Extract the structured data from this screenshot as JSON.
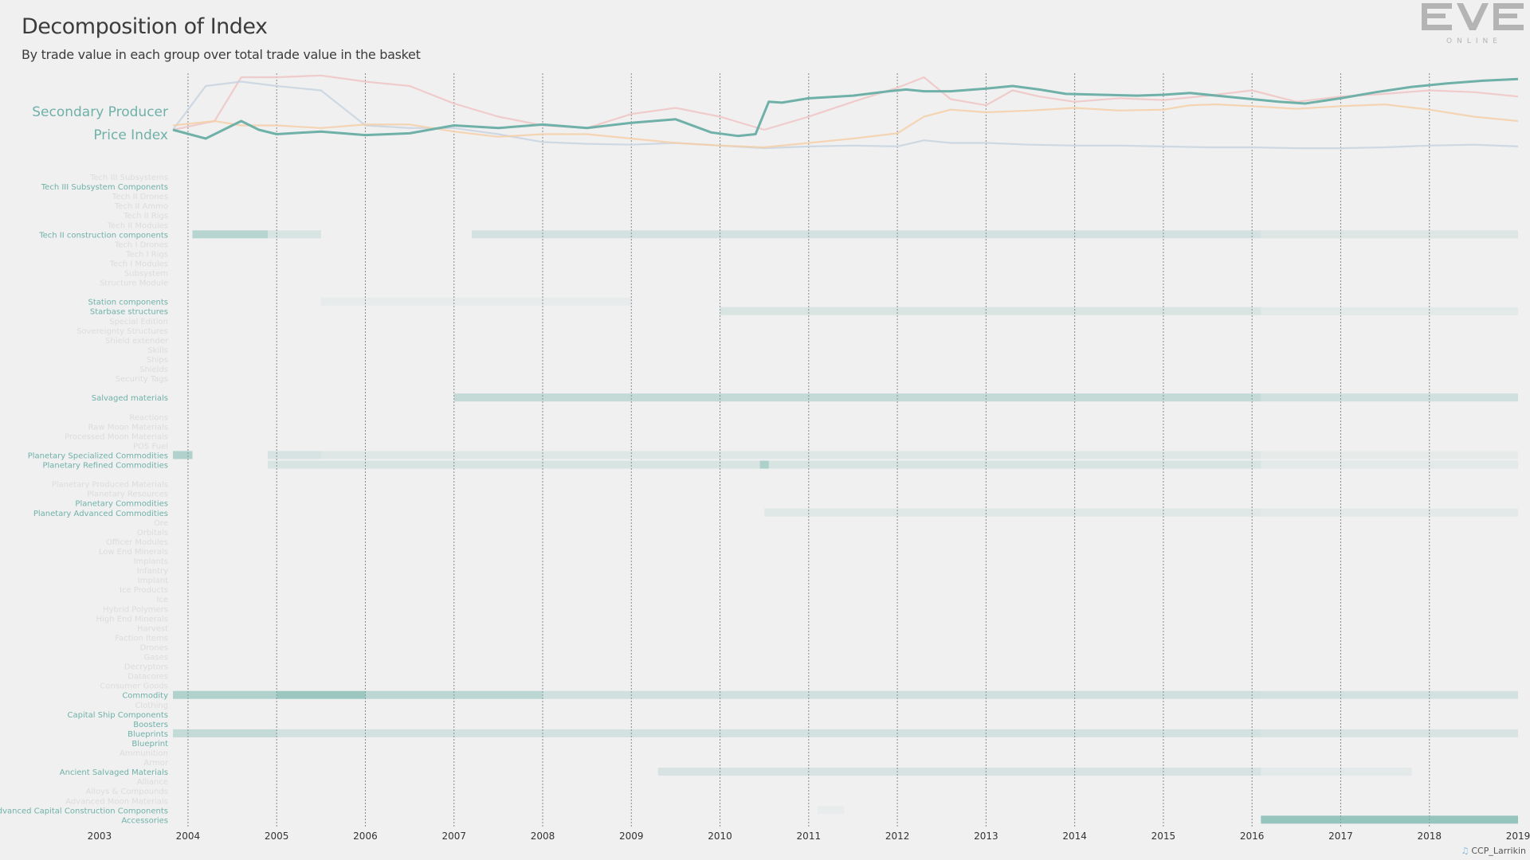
{
  "header": {
    "title": "Decomposition of Index",
    "subtitle": "By trade value in each group over total trade value in the basket"
  },
  "logo": {
    "word": "EVE",
    "sub": "ONLINE"
  },
  "credit": {
    "text": "CCP_Larrikin",
    "icon": "twitter-bird-icon"
  },
  "colors": {
    "background": "#f0f0f0",
    "accent": "#6fb1a8",
    "pink": "#f0c4c4",
    "blue": "#c8d4e0",
    "orange": "#f5cfa8",
    "grid": "#888888"
  },
  "chart_data": [
    {
      "type": "line",
      "label_lines": [
        "Secondary Producer",
        "Price Index"
      ],
      "x_range": [
        2003.83,
        2019.0
      ],
      "series": [
        {
          "color": "#6fb1a8",
          "highlight": true,
          "x": [
            2003.83,
            2004.2,
            2004.4,
            2004.6,
            2004.8,
            2005.0,
            2005.5,
            2006.0,
            2006.5,
            2007.0,
            2007.5,
            2008.0,
            2008.5,
            2009.0,
            2009.5,
            2009.9,
            2010.2,
            2010.4,
            2010.55,
            2010.7,
            2011.0,
            2011.5,
            2011.9,
            2012.1,
            2012.3,
            2012.6,
            2013.0,
            2013.3,
            2013.6,
            2013.9,
            2014.3,
            2014.7,
            2015.0,
            2015.3,
            2015.6,
            2016.0,
            2016.3,
            2016.6,
            2017.0,
            2017.4,
            2017.8,
            2018.2,
            2018.6,
            2019.0
          ],
          "y": [
            97,
            96,
            97,
            98,
            97,
            96.5,
            96.8,
            96.4,
            96.6,
            97.5,
            97.2,
            97.6,
            97.2,
            97.8,
            98.2,
            96.7,
            96.3,
            96.5,
            100.2,
            100.1,
            100.6,
            100.9,
            101.4,
            101.6,
            101.4,
            101.4,
            101.7,
            102.0,
            101.6,
            101.1,
            101.0,
            100.9,
            101.0,
            101.2,
            100.9,
            100.5,
            100.2,
            100.0,
            100.6,
            101.3,
            101.9,
            102.3,
            102.6,
            102.8
          ]
        },
        {
          "color": "#f0c4c4",
          "highlight": false,
          "x": [
            2003.83,
            2004.3,
            2004.6,
            2005.0,
            2005.5,
            2006.0,
            2006.5,
            2007.0,
            2007.5,
            2008.0,
            2008.5,
            2009.0,
            2009.5,
            2010.0,
            2010.5,
            2011.0,
            2011.5,
            2012.0,
            2012.3,
            2012.6,
            2013.0,
            2013.3,
            2013.6,
            2014.0,
            2014.5,
            2015.0,
            2015.5,
            2016.0,
            2016.5,
            2017.0,
            2017.5,
            2018.0,
            2018.5,
            2019.0
          ],
          "y": [
            97,
            98,
            103,
            103,
            103.2,
            102.5,
            102,
            100,
            98.5,
            97.5,
            97.2,
            98.8,
            99.5,
            98.5,
            97,
            98.5,
            100.2,
            101.8,
            103,
            100.5,
            99.8,
            101.5,
            100.8,
            100.2,
            100.6,
            100.4,
            100.9,
            101.5,
            100.2,
            100.8,
            101.1,
            101.5,
            101.3,
            100.8
          ]
        },
        {
          "color": "#c8d4e0",
          "highlight": false,
          "x": [
            2003.83,
            2004.2,
            2004.6,
            2005.0,
            2005.5,
            2006.0,
            2006.5,
            2007.0,
            2007.5,
            2008.0,
            2008.5,
            2009.0,
            2009.5,
            2010.0,
            2010.5,
            2011.0,
            2011.5,
            2012.0,
            2012.3,
            2012.6,
            2013.0,
            2013.5,
            2014.0,
            2014.5,
            2015.0,
            2015.5,
            2016.0,
            2016.5,
            2017.0,
            2017.5,
            2018.0,
            2018.5,
            2019.0
          ],
          "y": [
            97,
            102,
            102.5,
            102,
            101.5,
            97.5,
            97.2,
            97.2,
            96.5,
            95.6,
            95.4,
            95.3,
            95.5,
            95.2,
            94.9,
            95.1,
            95.2,
            95.1,
            95.8,
            95.5,
            95.5,
            95.3,
            95.2,
            95.2,
            95.1,
            95.0,
            95.0,
            94.9,
            94.9,
            95.0,
            95.2,
            95.3,
            95.1
          ]
        },
        {
          "color": "#f5cfa8",
          "highlight": false,
          "x": [
            2003.83,
            2004.3,
            2004.6,
            2005.0,
            2005.5,
            2006.0,
            2006.5,
            2007.0,
            2007.5,
            2008.0,
            2008.5,
            2009.0,
            2009.5,
            2010.0,
            2010.5,
            2011.0,
            2011.5,
            2012.0,
            2012.3,
            2012.6,
            2013.0,
            2013.5,
            2014.0,
            2014.5,
            2015.0,
            2015.3,
            2015.6,
            2016.0,
            2016.5,
            2017.0,
            2017.5,
            2018.0,
            2018.5,
            2019.0
          ],
          "y": [
            97.5,
            98,
            97.5,
            97.5,
            97.2,
            97.6,
            97.6,
            96.8,
            96.2,
            96.5,
            96.5,
            96,
            95.5,
            95.2,
            95,
            95.5,
            96,
            96.6,
            98.5,
            99.3,
            99,
            99.2,
            99.5,
            99.2,
            99.3,
            99.8,
            99.9,
            99.7,
            99.4,
            99.7,
            99.9,
            99.3,
            98.5,
            98
          ]
        }
      ]
    },
    {
      "type": "heatmap",
      "x_range": [
        2003.83,
        2019.0
      ],
      "xticks": [
        "2003",
        "2004",
        "2005",
        "2006",
        "2007",
        "2008",
        "2009",
        "2010",
        "2011",
        "2012",
        "2013",
        "2014",
        "2015",
        "2016",
        "2017",
        "2018",
        "2019"
      ],
      "rows": [
        {
          "label": "Tech III Subsystems",
          "highlight": false,
          "segments": []
        },
        {
          "label": "Tech III Subsystem Components",
          "highlight": true,
          "segments": []
        },
        {
          "label": "Tech II Drones",
          "highlight": false,
          "segments": []
        },
        {
          "label": "Tech II Ammo",
          "highlight": false,
          "segments": []
        },
        {
          "label": "Tech II Rigs",
          "highlight": false,
          "segments": []
        },
        {
          "label": "Tech II Modules",
          "highlight": false,
          "segments": []
        },
        {
          "label": "Tech II construction components",
          "highlight": true,
          "segments": [
            [
              2004.05,
              2004.9,
              0.45
            ],
            [
              2004.9,
              2005.5,
              0.18
            ],
            [
              2007.2,
              2016.1,
              0.22
            ],
            [
              2016.1,
              2019.0,
              0.15
            ]
          ]
        },
        {
          "label": "Tech I Drones",
          "highlight": false,
          "segments": []
        },
        {
          "label": "Tech I Rigs",
          "highlight": false,
          "segments": []
        },
        {
          "label": "Tech I Modules",
          "highlight": false,
          "segments": []
        },
        {
          "label": "Subsystem",
          "highlight": false,
          "segments": []
        },
        {
          "label": "Structure Module",
          "highlight": false,
          "segments": []
        },
        {
          "label": "",
          "highlight": false,
          "segments": []
        },
        {
          "label": "Station components",
          "highlight": true,
          "segments": [
            [
              2005.5,
              2009.0,
              0.06
            ]
          ]
        },
        {
          "label": "Starbase structures",
          "highlight": true,
          "segments": [
            [
              2010.0,
              2016.1,
              0.18
            ],
            [
              2016.1,
              2019.0,
              0.1
            ]
          ]
        },
        {
          "label": "Special Edition",
          "highlight": false,
          "segments": []
        },
        {
          "label": "Sovereignty Structures",
          "highlight": false,
          "segments": []
        },
        {
          "label": "Shield extender",
          "highlight": false,
          "segments": []
        },
        {
          "label": "Skills",
          "highlight": false,
          "segments": []
        },
        {
          "label": "Ships",
          "highlight": false,
          "segments": []
        },
        {
          "label": "Shields",
          "highlight": false,
          "segments": []
        },
        {
          "label": "Security Tags",
          "highlight": false,
          "segments": []
        },
        {
          "label": "",
          "highlight": false,
          "segments": []
        },
        {
          "label": "Salvaged materials",
          "highlight": true,
          "segments": [
            [
              2007.0,
              2016.1,
              0.35
            ],
            [
              2016.1,
              2019.0,
              0.25
            ]
          ]
        },
        {
          "label": "",
          "highlight": false,
          "segments": []
        },
        {
          "label": "Reactions",
          "highlight": false,
          "segments": []
        },
        {
          "label": "Raw Moon Materials",
          "highlight": false,
          "segments": []
        },
        {
          "label": "Processed Moon Materials",
          "highlight": false,
          "segments": []
        },
        {
          "label": "POS Fuel",
          "highlight": false,
          "segments": []
        },
        {
          "label": "Planetary Specialized Commodities",
          "highlight": true,
          "segments": [
            [
              2003.83,
              2004.05,
              0.5
            ],
            [
              2004.9,
              2005.5,
              0.2
            ],
            [
              2005.5,
              2016.1,
              0.14
            ],
            [
              2016.1,
              2019.0,
              0.08
            ]
          ]
        },
        {
          "label": "Planetary Refined Commodities",
          "highlight": true,
          "segments": [
            [
              2004.9,
              2016.1,
              0.18
            ],
            [
              2010.45,
              2010.55,
              0.4
            ],
            [
              2016.1,
              2019.0,
              0.1
            ]
          ]
        },
        {
          "label": "",
          "highlight": false,
          "segments": []
        },
        {
          "label": "Planetary Produced Materials",
          "highlight": false,
          "segments": []
        },
        {
          "label": "Planetary Resources",
          "highlight": false,
          "segments": []
        },
        {
          "label": "Planetary Commodities",
          "highlight": true,
          "segments": []
        },
        {
          "label": "Planetary Advanced Commodities",
          "highlight": true,
          "segments": [
            [
              2010.5,
              2016.1,
              0.12
            ],
            [
              2016.1,
              2019.0,
              0.1
            ]
          ]
        },
        {
          "label": "Ore",
          "highlight": false,
          "segments": []
        },
        {
          "label": "Orbitals",
          "highlight": false,
          "segments": []
        },
        {
          "label": "Officer Modules",
          "highlight": false,
          "segments": []
        },
        {
          "label": "Low End Minerals",
          "highlight": false,
          "segments": []
        },
        {
          "label": "Implants",
          "highlight": false,
          "segments": []
        },
        {
          "label": "Infantry",
          "highlight": false,
          "segments": []
        },
        {
          "label": "Implant",
          "highlight": false,
          "segments": []
        },
        {
          "label": "Ice Products",
          "highlight": false,
          "segments": []
        },
        {
          "label": "Ice",
          "highlight": false,
          "segments": []
        },
        {
          "label": "Hybrid Polymers",
          "highlight": false,
          "segments": []
        },
        {
          "label": "High End Minerals",
          "highlight": false,
          "segments": []
        },
        {
          "label": "Harvest",
          "highlight": false,
          "segments": []
        },
        {
          "label": "Faction Items",
          "highlight": false,
          "segments": []
        },
        {
          "label": "Drones",
          "highlight": false,
          "segments": []
        },
        {
          "label": "Gases",
          "highlight": false,
          "segments": []
        },
        {
          "label": "Decryptors",
          "highlight": false,
          "segments": []
        },
        {
          "label": "Datacores",
          "highlight": false,
          "segments": []
        },
        {
          "label": "Consumer Goods",
          "highlight": false,
          "segments": []
        },
        {
          "label": "Commodity",
          "highlight": true,
          "segments": [
            [
              2003.83,
              2005.0,
              0.5
            ],
            [
              2005.0,
              2006.0,
              0.65
            ],
            [
              2006.0,
              2008.0,
              0.4
            ],
            [
              2008.0,
              2016.1,
              0.25
            ],
            [
              2016.1,
              2019.0,
              0.22
            ]
          ]
        },
        {
          "label": "Clothing",
          "highlight": false,
          "segments": []
        },
        {
          "label": "Capital Ship Components",
          "highlight": true,
          "segments": []
        },
        {
          "label": "Boosters",
          "highlight": true,
          "segments": []
        },
        {
          "label": "Blueprints",
          "highlight": true,
          "segments": [
            [
              2003.83,
              2005.0,
              0.35
            ],
            [
              2005.0,
              2016.1,
              0.22
            ],
            [
              2016.1,
              2019.0,
              0.18
            ]
          ]
        },
        {
          "label": "Blueprint",
          "highlight": true,
          "segments": []
        },
        {
          "label": "Ammunition",
          "highlight": false,
          "segments": []
        },
        {
          "label": "Armor",
          "highlight": false,
          "segments": []
        },
        {
          "label": "Ancient Salvaged Materials",
          "highlight": true,
          "segments": [
            [
              2009.3,
              2016.1,
              0.2
            ],
            [
              2016.1,
              2017.8,
              0.1
            ]
          ]
        },
        {
          "label": "Alliance",
          "highlight": false,
          "segments": []
        },
        {
          "label": "Alloys & Compounds",
          "highlight": false,
          "segments": []
        },
        {
          "label": "Advanced Moon Materials",
          "highlight": false,
          "segments": []
        },
        {
          "label": "Advanced Capital Construction Components",
          "highlight": true,
          "segments": [
            [
              2011.1,
              2011.4,
              0.05
            ]
          ]
        },
        {
          "label": "Accessories",
          "highlight": true,
          "segments": [
            [
              2016.1,
              2019.0,
              0.7
            ]
          ]
        }
      ]
    }
  ]
}
